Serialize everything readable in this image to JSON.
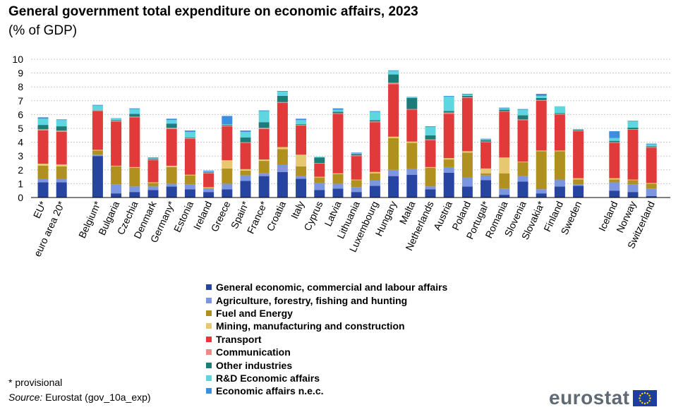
{
  "title": "General government total expenditure on economic affairs, 2023",
  "subtitle": "(% of GDP)",
  "footnote": "* provisional",
  "source_label": "Source:",
  "source_text": "Eurostat (gov_10a_exp)",
  "logo_text": "eurostat",
  "colors": {
    "General economic, commercial and labour affairs": "#2644a0",
    "Agriculture, forestry, fishing and hunting": "#7d96e0",
    "Fuel and Energy": "#b09120",
    "Mining, manufacturing and construction": "#e5c86f",
    "Transport": "#e03a3a",
    "Communication": "#ee8a85",
    "Other industries": "#1f7b77",
    "R&D Economic affairs": "#5dd6e0",
    "Economic affairs n.e.c.": "#3b8fde"
  },
  "chart_data": {
    "type": "bar",
    "stacked": true,
    "ylim": [
      0,
      10
    ],
    "yticks": [
      0,
      1,
      2,
      3,
      4,
      5,
      6,
      7,
      8,
      9,
      10
    ],
    "grid": true,
    "legend_position": "bottom",
    "categories": [
      "EU*",
      "euro area 20*",
      "Belgium*",
      "Bulgaria",
      "Czechia",
      "Denmark",
      "Germany*",
      "Estonia",
      "Ireland",
      "Greece",
      "Spain*",
      "France*",
      "Croatia",
      "Italy",
      "Cyprus",
      "Latvia",
      "Lithuania",
      "Luxembourg",
      "Hungary",
      "Malta",
      "Netherlands",
      "Austria",
      "Poland",
      "Portugal*",
      "Romania",
      "Slovenia",
      "Slovakia*",
      "Finland",
      "Sweden",
      "Iceland",
      "Norway",
      "Switzerland"
    ],
    "series": [
      {
        "name": "General economic, commercial and labour affairs",
        "values": [
          1.1,
          1.1,
          3.0,
          0.3,
          0.4,
          0.55,
          0.8,
          0.6,
          0.4,
          0.6,
          1.2,
          1.55,
          1.85,
          1.35,
          0.55,
          0.65,
          0.4,
          0.85,
          1.55,
          1.65,
          0.6,
          1.8,
          0.8,
          1.25,
          0.2,
          1.15,
          0.3,
          0.8,
          0.85,
          0.5,
          0.4,
          0.1
        ]
      },
      {
        "name": "Agriculture, forestry, fishing and hunting",
        "values": [
          0.25,
          0.25,
          0.1,
          0.65,
          0.4,
          0.25,
          0.2,
          0.35,
          0.25,
          0.4,
          0.4,
          0.2,
          0.5,
          0.2,
          0.5,
          0.35,
          0.35,
          0.4,
          0.45,
          0.4,
          0.2,
          0.4,
          0.65,
          0.35,
          0.45,
          0.4,
          0.3,
          0.5,
          0.1,
          0.6,
          0.55,
          0.55
        ]
      },
      {
        "name": "Fuel and Energy",
        "values": [
          0.95,
          0.9,
          0.3,
          1.3,
          1.35,
          0.25,
          1.2,
          0.65,
          0.05,
          1.1,
          0.35,
          0.9,
          1.15,
          0.7,
          0.4,
          0.7,
          0.5,
          0.5,
          2.3,
          1.9,
          1.35,
          0.55,
          1.8,
          0.15,
          1.1,
          1.0,
          2.75,
          2.05,
          0.35,
          0.2,
          0.3,
          0.35
        ]
      },
      {
        "name": "Mining, manufacturing and construction",
        "values": [
          0.15,
          0.15,
          0.05,
          0.05,
          0.05,
          0.05,
          0.1,
          0.05,
          0.05,
          0.6,
          0.1,
          0.1,
          0.15,
          0.85,
          0.05,
          0.05,
          0.05,
          0.1,
          0.1,
          0.1,
          0.05,
          0.1,
          0.1,
          0.35,
          1.15,
          0.05,
          0.05,
          0.05,
          0.1,
          0.1,
          0.05,
          0.05
        ]
      },
      {
        "name": "Transport",
        "values": [
          2.4,
          2.35,
          2.8,
          3.2,
          3.6,
          1.6,
          2.65,
          2.6,
          1.0,
          2.45,
          1.9,
          2.2,
          3.2,
          2.1,
          0.95,
          4.3,
          1.7,
          3.6,
          3.8,
          2.3,
          1.95,
          3.2,
          3.85,
          1.9,
          3.3,
          3.0,
          3.6,
          2.6,
          3.4,
          2.55,
          3.6,
          2.55
        ]
      },
      {
        "name": "Communication",
        "values": [
          0.1,
          0.1,
          0.05,
          0.05,
          0.05,
          0.05,
          0.1,
          0.05,
          0.05,
          0.05,
          0.05,
          0.1,
          0.05,
          0.05,
          0.05,
          0.05,
          0.05,
          0.05,
          0.1,
          0.05,
          0.05,
          0.1,
          0.05,
          0.05,
          0.05,
          0.05,
          0.05,
          0.05,
          0.05,
          0.05,
          0.05,
          0.05
        ]
      },
      {
        "name": "Other industries",
        "values": [
          0.3,
          0.3,
          0.0,
          0.05,
          0.2,
          0.05,
          0.3,
          0.05,
          0.05,
          0.05,
          0.35,
          0.4,
          0.45,
          0.05,
          0.4,
          0.1,
          0.1,
          0.1,
          0.6,
          0.8,
          0.3,
          0.1,
          0.1,
          0.1,
          0.1,
          0.3,
          0.15,
          0.05,
          0.05,
          0.1,
          0.1,
          0.05
        ]
      },
      {
        "name": "R&D Economic affairs",
        "values": [
          0.45,
          0.45,
          0.35,
          0.15,
          0.35,
          0.05,
          0.25,
          0.4,
          0.05,
          0.05,
          0.4,
          0.8,
          0.3,
          0.3,
          0.05,
          0.15,
          0.05,
          0.6,
          0.25,
          0.1,
          0.6,
          1.05,
          0.1,
          0.05,
          0.1,
          0.4,
          0.15,
          0.5,
          0.05,
          0.2,
          0.45,
          0.15
        ]
      },
      {
        "name": "Economic affairs n.e.c.",
        "values": [
          0.1,
          0.05,
          0.05,
          0.0,
          0.05,
          0.05,
          0.1,
          0.1,
          0.05,
          0.6,
          0.1,
          0.05,
          0.05,
          0.1,
          0.0,
          0.1,
          0.05,
          0.05,
          0.05,
          0.0,
          0.05,
          0.05,
          0.05,
          0.05,
          0.05,
          0.05,
          0.15,
          0.0,
          0.0,
          0.5,
          0.05,
          0.05
        ]
      }
    ]
  }
}
